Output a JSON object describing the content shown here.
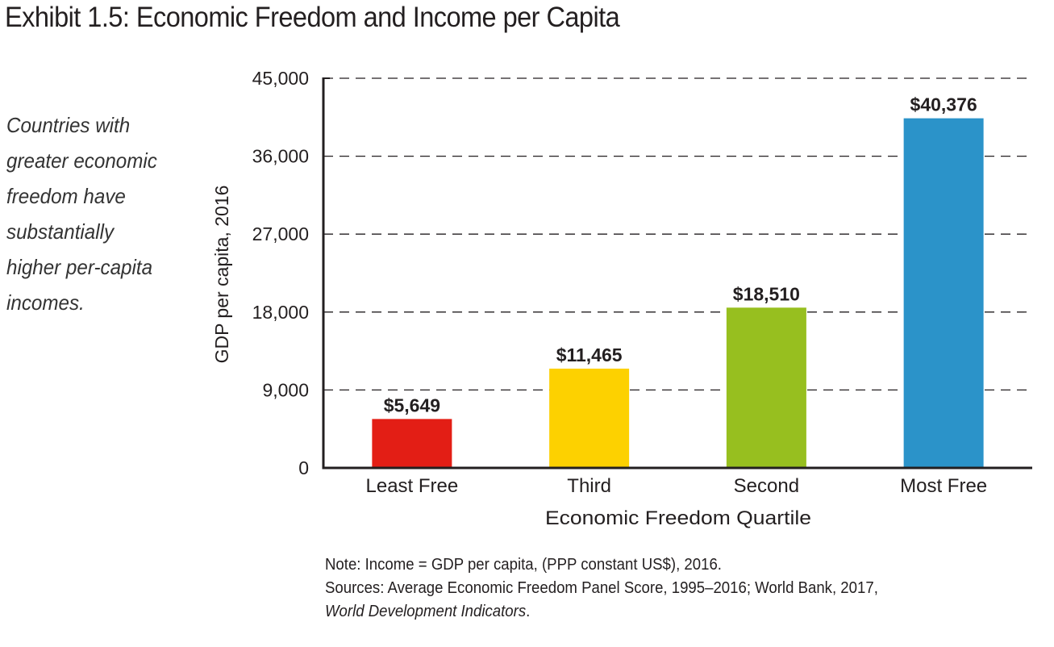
{
  "header": {
    "title": "Exhibit 1.5: Economic Freedom and Income per Capita"
  },
  "caption": {
    "lines": [
      "Countries with",
      "greater economic",
      "freedom have",
      "substantially",
      "higher per-capita",
      "incomes."
    ]
  },
  "footnote": {
    "note": "Note: Income = GDP per capita, (PPP constant US$), 2016.",
    "sources": "Sources: Average Economic Freedom Panel Score, 1995–2016; World Bank, 2017,",
    "sources_italic": "World Development Indicators",
    "sources_end": "."
  },
  "chart_data": {
    "type": "bar",
    "title": "Exhibit 1.5: Economic Freedom and Income per Capita",
    "xlabel": "Economic Freedom Quartile",
    "ylabel": "GDP per capita, 2016",
    "categories": [
      "Least Free",
      "Third",
      "Second",
      "Most Free"
    ],
    "values": [
      5649,
      11465,
      18510,
      40376
    ],
    "data_labels": [
      "$5,649",
      "$11,465",
      "$18,510",
      "$40,376"
    ],
    "colors": [
      "#e31e15",
      "#fdd100",
      "#97bf1f",
      "#2b93c9"
    ],
    "ylim": [
      0,
      45000
    ],
    "yticks": [
      0,
      9000,
      18000,
      27000,
      36000,
      45000
    ],
    "ytick_labels": [
      "0",
      "9,000",
      "18,000",
      "27,000",
      "36,000",
      "45,000"
    ],
    "grid": "horizontal dashed",
    "legend": "none"
  }
}
